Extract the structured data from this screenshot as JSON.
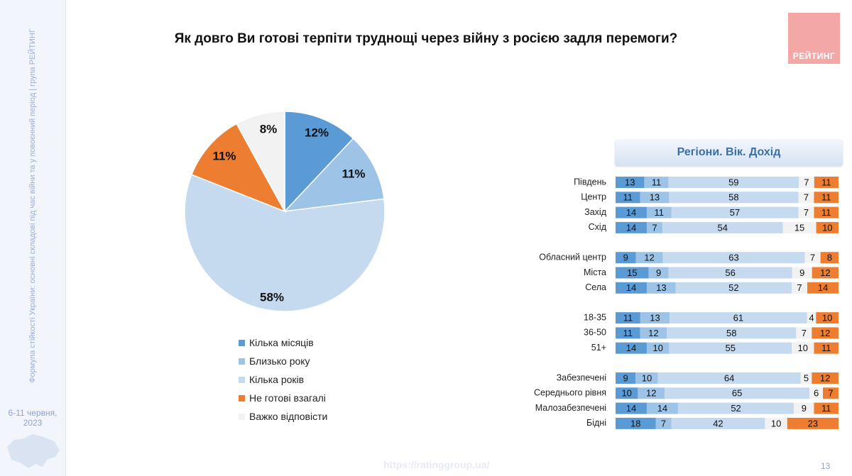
{
  "title": "Як довго Ви готові терпіти труднощі через війну з росією задля перемоги?",
  "logo": {
    "text": "РЕЙТИНГ"
  },
  "sidebar": {
    "vertical_text": "Формула стійкості України: основні складові під час війни та у повоєнний період | група РЕЙТИНГ",
    "date_line1": "6-11 червня,",
    "date_line2": "2023"
  },
  "colors": [
    "#5b9bd5",
    "#9dc3e6",
    "#c5d9ef",
    "#ed7d31",
    "#f2f2f2"
  ],
  "chart_data": [
    {
      "type": "pie",
      "labels": [
        "Кілька місяців",
        "Близько року",
        "Кілька років",
        "Не готові взагалі",
        "Важко відповісти"
      ],
      "values": [
        12,
        11,
        58,
        11,
        8
      ],
      "value_labels": [
        "12%",
        "11%",
        "58%",
        "11%",
        "8%"
      ]
    },
    {
      "type": "bar",
      "orientation": "horizontal",
      "stacked": true,
      "title": "Регіони. Вік. Дохід",
      "categories": [
        "Південь",
        "Центр",
        "Захід",
        "Схід",
        "Обласний центр",
        "Міста",
        "Села",
        "18-35",
        "36-50",
        "51+",
        "Забезпечені",
        "Середнього рівня",
        "Малозабезпечені",
        "Бідні"
      ],
      "groups": [
        [
          0,
          1,
          2,
          3
        ],
        [
          4,
          5,
          6
        ],
        [
          7,
          8,
          9
        ],
        [
          10,
          11,
          12,
          13
        ]
      ],
      "series": [
        {
          "name": "Кілька місяців",
          "values": [
            13,
            11,
            14,
            14,
            9,
            15,
            14,
            11,
            11,
            14,
            9,
            10,
            14,
            18
          ]
        },
        {
          "name": "Близько року",
          "values": [
            11,
            13,
            11,
            7,
            12,
            9,
            13,
            13,
            12,
            10,
            10,
            12,
            14,
            7
          ]
        },
        {
          "name": "Кілька років",
          "values": [
            59,
            58,
            57,
            54,
            63,
            56,
            52,
            61,
            58,
            55,
            64,
            65,
            52,
            42
          ]
        },
        {
          "name": "Важко відповісти",
          "values": [
            7,
            7,
            7,
            15,
            7,
            9,
            7,
            4,
            7,
            10,
            5,
            6,
            9,
            10
          ]
        },
        {
          "name": "Не готові взагалі",
          "values": [
            11,
            11,
            11,
            10,
            8,
            12,
            14,
            10,
            12,
            11,
            12,
            7,
            11,
            23
          ]
        }
      ]
    }
  ],
  "footer": {
    "url": "https://ratinggroup.ua/",
    "page": "13"
  }
}
